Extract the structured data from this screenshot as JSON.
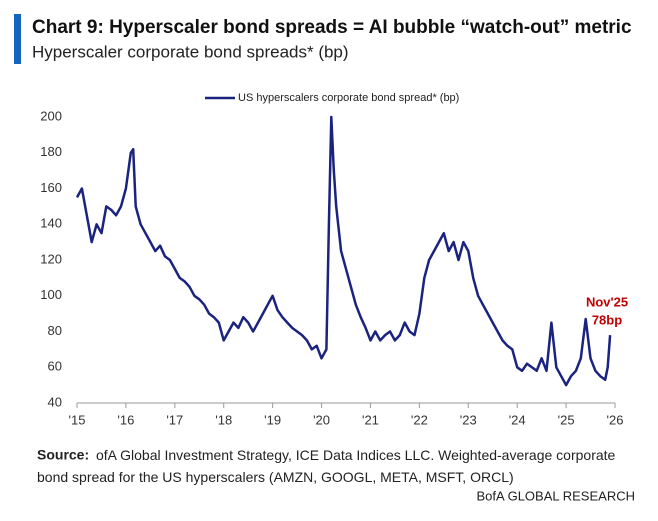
{
  "chart_data": {
    "type": "line",
    "title": "Chart 9: Hyperscaler bond spreads = AI bubble “watch-out” metric",
    "subtitle": "Hyperscaler corporate bond spreads* (bp)",
    "source_label": "Source:",
    "source": "ofA Global Investment Strategy, ICE Data Indices LLC. Weighted-average corporate bond spread for the US hyperscalers (AMZN, GOOGL, META, MSFT, ORCL)",
    "brand": "BofA GLOBAL RESEARCH",
    "annotations": [
      "Nov'25",
      "78bp"
    ],
    "x": [
      2015.0,
      2015.1,
      2015.2,
      2015.3,
      2015.4,
      2015.5,
      2015.6,
      2015.7,
      2015.8,
      2015.9,
      2016.0,
      2016.1,
      2016.15,
      2016.2,
      2016.3,
      2016.4,
      2016.5,
      2016.6,
      2016.7,
      2016.8,
      2016.9,
      2017.0,
      2017.1,
      2017.2,
      2017.3,
      2017.4,
      2017.5,
      2017.6,
      2017.7,
      2017.8,
      2017.9,
      2018.0,
      2018.1,
      2018.2,
      2018.3,
      2018.4,
      2018.5,
      2018.6,
      2018.7,
      2018.8,
      2018.9,
      2019.0,
      2019.1,
      2019.2,
      2019.3,
      2019.4,
      2019.5,
      2019.6,
      2019.7,
      2019.8,
      2019.9,
      2020.0,
      2020.1,
      2020.15,
      2020.2,
      2020.25,
      2020.3,
      2020.4,
      2020.5,
      2020.6,
      2020.7,
      2020.8,
      2020.9,
      2021.0,
      2021.1,
      2021.2,
      2021.3,
      2021.4,
      2021.5,
      2021.6,
      2021.7,
      2021.8,
      2021.9,
      2022.0,
      2022.1,
      2022.2,
      2022.3,
      2022.4,
      2022.5,
      2022.6,
      2022.7,
      2022.8,
      2022.9,
      2023.0,
      2023.1,
      2023.2,
      2023.3,
      2023.4,
      2023.5,
      2023.6,
      2023.7,
      2023.8,
      2023.9,
      2024.0,
      2024.1,
      2024.2,
      2024.3,
      2024.4,
      2024.5,
      2024.6,
      2024.7,
      2024.8,
      2024.9,
      2025.0,
      2025.1,
      2025.2,
      2025.3,
      2025.4,
      2025.5,
      2025.6,
      2025.7,
      2025.8,
      2025.85,
      2025.9
    ],
    "series": [
      {
        "name": "US hyperscalers corporate bond spread* (bp)",
        "color": "#1a237e",
        "values": [
          155,
          160,
          145,
          130,
          140,
          135,
          150,
          148,
          145,
          150,
          160,
          180,
          182,
          150,
          140,
          135,
          130,
          125,
          128,
          122,
          120,
          115,
          110,
          108,
          105,
          100,
          98,
          95,
          90,
          88,
          85,
          75,
          80,
          85,
          82,
          88,
          85,
          80,
          85,
          90,
          95,
          100,
          92,
          88,
          85,
          82,
          80,
          78,
          75,
          70,
          72,
          65,
          70,
          140,
          200,
          170,
          150,
          125,
          115,
          105,
          95,
          88,
          82,
          75,
          80,
          75,
          78,
          80,
          75,
          78,
          85,
          80,
          78,
          90,
          110,
          120,
          125,
          130,
          135,
          125,
          130,
          120,
          130,
          125,
          110,
          100,
          95,
          90,
          85,
          80,
          75,
          72,
          70,
          60,
          58,
          62,
          60,
          58,
          65,
          58,
          85,
          60,
          55,
          50,
          55,
          58,
          65,
          87,
          65,
          58,
          55,
          53,
          60,
          78
        ]
      }
    ],
    "xlim": [
      2015,
      2026
    ],
    "xticks": [
      {
        "value": 2015,
        "label": "'15"
      },
      {
        "value": 2016,
        "label": "'16"
      },
      {
        "value": 2017,
        "label": "'17"
      },
      {
        "value": 2018,
        "label": "'18"
      },
      {
        "value": 2019,
        "label": "'19"
      },
      {
        "value": 2020,
        "label": "'20"
      },
      {
        "value": 2021,
        "label": "'21"
      },
      {
        "value": 2022,
        "label": "'22"
      },
      {
        "value": 2023,
        "label": "'23"
      },
      {
        "value": 2024,
        "label": "'24"
      },
      {
        "value": 2025,
        "label": "'25"
      },
      {
        "value": 2026,
        "label": "'26"
      }
    ],
    "ylim": [
      40,
      200
    ],
    "yticks": [
      40,
      60,
      80,
      100,
      120,
      140,
      160,
      180,
      200
    ],
    "grid": false
  }
}
